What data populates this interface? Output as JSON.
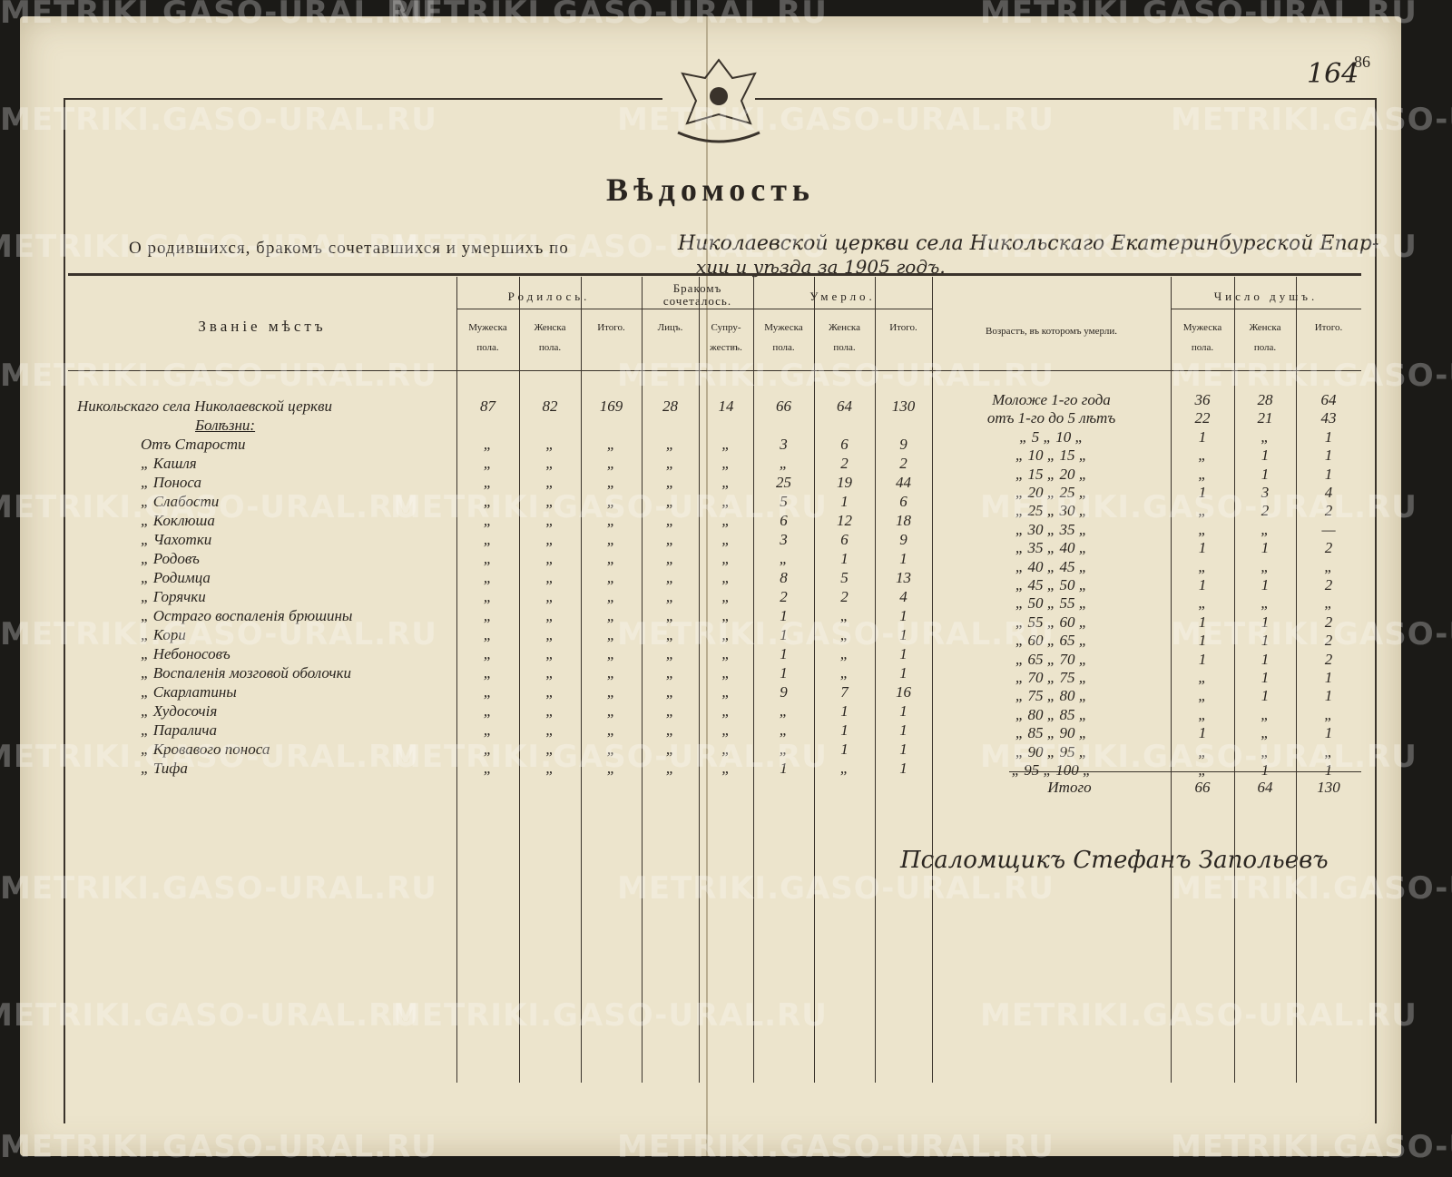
{
  "watermark": "METRIKI.GASO-URAL.RU",
  "page_number": "86",
  "archive_number": "164",
  "title": "Вѣдомость",
  "subtitle_printed": "О родившихся, бракомъ сочетавшихся и умершихъ по",
  "subtitle_handwritten_1": "Николаевской церкви села Никольскаго Екатеринбургской Епар-",
  "subtitle_handwritten_2": "хии и уѣзда за 1905 годъ.",
  "table": {
    "header_place": "Званіе мѣстъ",
    "groups": {
      "born": "Родилось.",
      "married": "Бракомъ сочеталось.",
      "died": "Умерло.",
      "age": "Возрастъ, въ которомъ умерли.",
      "souls": "Число душъ."
    },
    "subheaders": [
      "Мужеска пола.",
      "Женска пола.",
      "Итого.",
      "Лицъ.",
      "Супру-жествъ.",
      "Мужеска пола.",
      "Женска пола.",
      "Итого.",
      "Мужеска пола.",
      "Женска пола.",
      "Итого."
    ],
    "left_rows": [
      [
        "Никольскаго села Николаевской церкви",
        "87",
        "82",
        "169",
        "28",
        "14",
        "66",
        "64",
        "130"
      ],
      [
        "Болѣзни:",
        "",
        "",
        "",
        "",
        "",
        "",
        "",
        ""
      ],
      [
        "Отъ Старости",
        "„",
        "„",
        "„",
        "„",
        "„",
        "3",
        "6",
        "9"
      ],
      [
        "„ Кашля",
        "„",
        "„",
        "„",
        "„",
        "„",
        "„",
        "2",
        "2"
      ],
      [
        "„ Поноса",
        "„",
        "„",
        "„",
        "„",
        "„",
        "25",
        "19",
        "44"
      ],
      [
        "„ Слабости",
        "„",
        "„",
        "„",
        "„",
        "„",
        "5",
        "1",
        "6"
      ],
      [
        "„ Коклюша",
        "„",
        "„",
        "„",
        "„",
        "„",
        "6",
        "12",
        "18"
      ],
      [
        "„ Чахотки",
        "„",
        "„",
        "„",
        "„",
        "„",
        "3",
        "6",
        "9"
      ],
      [
        "„ Родовъ",
        "„",
        "„",
        "„",
        "„",
        "„",
        "„",
        "1",
        "1"
      ],
      [
        "„ Родимца",
        "„",
        "„",
        "„",
        "„",
        "„",
        "8",
        "5",
        "13"
      ],
      [
        "„ Горячки",
        "„",
        "„",
        "„",
        "„",
        "„",
        "2",
        "2",
        "4"
      ],
      [
        "„ Остраго воспаленія брюшины",
        "„",
        "„",
        "„",
        "„",
        "„",
        "1",
        "„",
        "1"
      ],
      [
        "„ Кори",
        "„",
        "„",
        "„",
        "„",
        "„",
        "1",
        "„",
        "1"
      ],
      [
        "„ Небоносовъ",
        "„",
        "„",
        "„",
        "„",
        "„",
        "1",
        "„",
        "1"
      ],
      [
        "„ Воспаленія мозговой оболочки",
        "„",
        "„",
        "„",
        "„",
        "„",
        "1",
        "„",
        "1"
      ],
      [
        "„ Скарлатины",
        "„",
        "„",
        "„",
        "„",
        "„",
        "9",
        "7",
        "16"
      ],
      [
        "„ Худосочія",
        "„",
        "„",
        "„",
        "„",
        "„",
        "„",
        "1",
        "1"
      ],
      [
        "„ Паралича",
        "„",
        "„",
        "„",
        "„",
        "„",
        "„",
        "1",
        "1"
      ],
      [
        "„ Кровавого поноса",
        "„",
        "„",
        "„",
        "„",
        "„",
        "„",
        "1",
        "1"
      ],
      [
        "„ Тифа",
        "„",
        "„",
        "„",
        "„",
        "„",
        "1",
        "„",
        "1"
      ]
    ],
    "age_rows": [
      [
        "Моложе 1-го года",
        "36",
        "28",
        "64"
      ],
      [
        "отъ 1-го до 5 лѣтъ",
        "22",
        "21",
        "43"
      ],
      [
        "„ 5 „ 10 „",
        "1",
        "„",
        "1"
      ],
      [
        "„ 10 „ 15 „",
        "„",
        "1",
        "1"
      ],
      [
        "„ 15 „ 20 „",
        "„",
        "1",
        "1"
      ],
      [
        "„ 20 „ 25 „",
        "1",
        "3",
        "4"
      ],
      [
        "„ 25 „ 30 „",
        "„",
        "2",
        "2"
      ],
      [
        "„ 30 „ 35 „",
        "„",
        "„",
        "—"
      ],
      [
        "„ 35 „ 40 „",
        "1",
        "1",
        "2"
      ],
      [
        "„ 40 „ 45 „",
        "„",
        "„",
        "„"
      ],
      [
        "„ 45 „ 50 „",
        "1",
        "1",
        "2"
      ],
      [
        "„ 50 „ 55 „",
        "„",
        "„",
        "„"
      ],
      [
        "„ 55 „ 60 „",
        "1",
        "1",
        "2"
      ],
      [
        "„ 60 „ 65 „",
        "1",
        "1",
        "2"
      ],
      [
        "„ 65 „ 70 „",
        "1",
        "1",
        "2"
      ],
      [
        "„ 70 „ 75 „",
        "„",
        "1",
        "1"
      ],
      [
        "„ 75 „ 80 „",
        "„",
        "1",
        "1"
      ],
      [
        "„ 80 „ 85 „",
        "„",
        "„",
        "„"
      ],
      [
        "„ 85 „ 90 „",
        "1",
        "„",
        "1"
      ],
      [
        "„ 90 „ 95 „",
        "„",
        "„",
        "„"
      ],
      [
        "„ 95 „ 100 „",
        "„",
        "1",
        "1"
      ]
    ],
    "total": [
      "Итого",
      "66",
      "64",
      "130"
    ]
  },
  "signature": "Псаломщикъ Стефанъ Запольевъ"
}
